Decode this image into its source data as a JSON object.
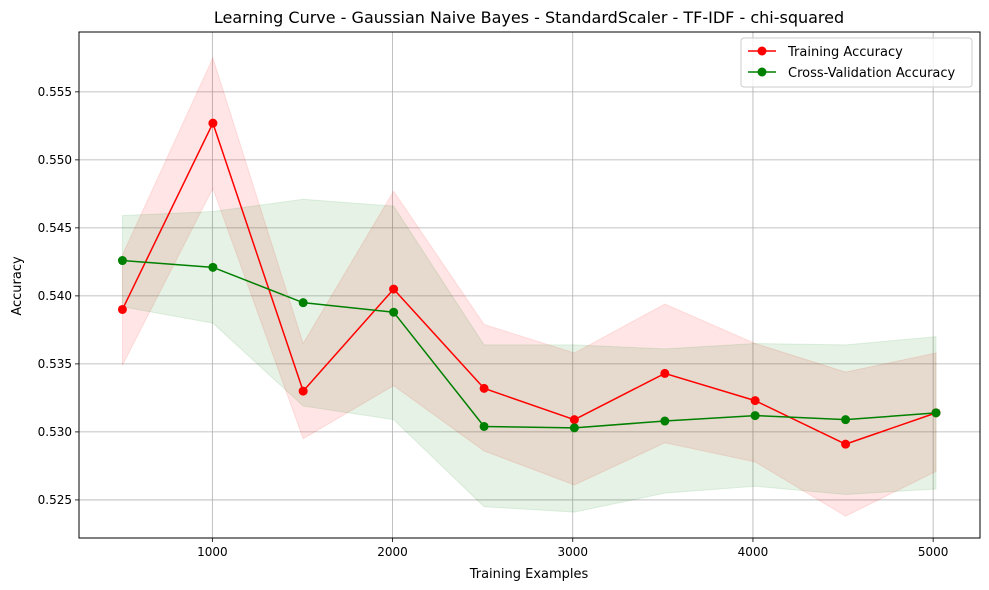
{
  "chart_data": {
    "type": "line",
    "title": "Learning Curve - Gaussian Naive Bayes - StandardScaler - TF-IDF - chi-squared",
    "xlabel": "Training Examples",
    "ylabel": "Accuracy",
    "xlim": [
      260,
      5260
    ],
    "ylim": [
      0.5222,
      0.5594
    ],
    "xticks": [
      1000,
      2000,
      3000,
      4000,
      5000
    ],
    "yticks": [
      0.525,
      0.53,
      0.535,
      0.54,
      0.545,
      0.55,
      0.555
    ],
    "ytick_labels": [
      "0.525",
      "0.530",
      "0.535",
      "0.540",
      "0.545",
      "0.550",
      "0.555"
    ],
    "grid": true,
    "legend_position": "top-right",
    "x": [
      501,
      1003,
      1504,
      2006,
      2508,
      3009,
      3511,
      4012,
      4514,
      5016
    ],
    "series": [
      {
        "name": "Training Accuracy",
        "color": "#ff0000",
        "band_color": "#ff0000",
        "values": [
          0.539,
          0.5527,
          0.533,
          0.5405,
          0.5332,
          0.5309,
          0.5343,
          0.5323,
          0.5291,
          0.5314
        ],
        "band_upper": [
          0.543,
          0.5575,
          0.5365,
          0.5477,
          0.5379,
          0.5358,
          0.5394,
          0.5365,
          0.5344,
          0.5358
        ],
        "band_lower": [
          0.5349,
          0.5479,
          0.5295,
          0.5334,
          0.5286,
          0.5261,
          0.5292,
          0.5278,
          0.5238,
          0.5271
        ]
      },
      {
        "name": "Cross-Validation Accuracy",
        "color": "#008000",
        "band_color": "#008000",
        "values": [
          0.5426,
          0.5421,
          0.5395,
          0.5388,
          0.5304,
          0.5303,
          0.5308,
          0.5312,
          0.5309,
          0.5314
        ],
        "band_upper": [
          0.5459,
          0.5462,
          0.5471,
          0.5466,
          0.5364,
          0.5364,
          0.5361,
          0.5365,
          0.5364,
          0.537
        ],
        "band_lower": [
          0.5392,
          0.538,
          0.5319,
          0.5309,
          0.5245,
          0.5241,
          0.5255,
          0.526,
          0.5254,
          0.5258
        ]
      }
    ]
  }
}
